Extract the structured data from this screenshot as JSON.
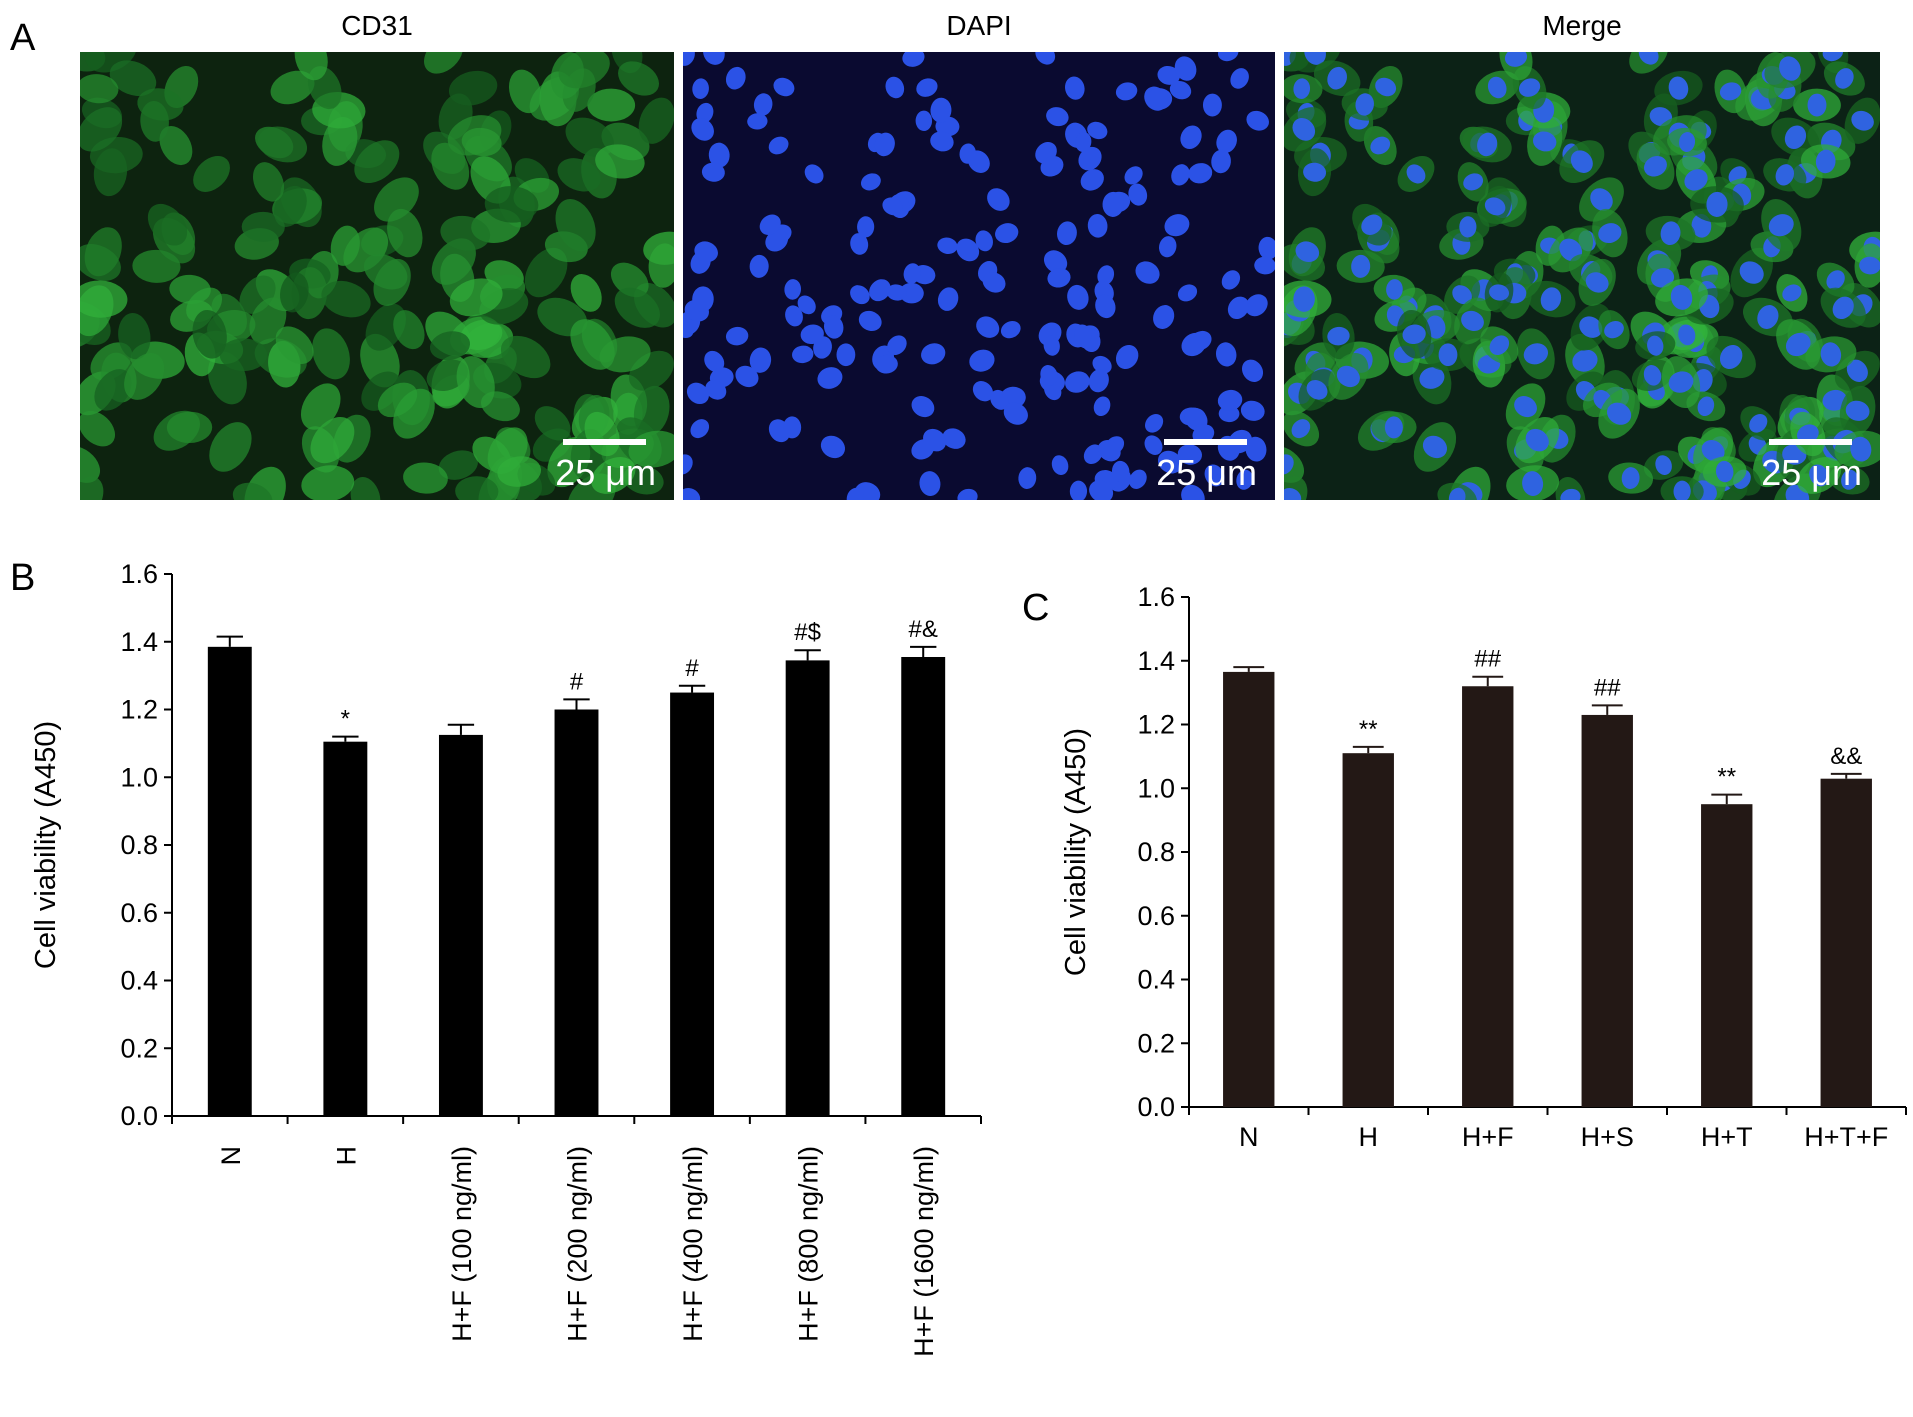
{
  "figure": {
    "panel_labels": [
      "A",
      "B",
      "C"
    ],
    "image_titles": [
      "CD31",
      "DAPI",
      "Merge"
    ],
    "scale_bars": [
      "25 μm",
      "25 μm",
      "25 μm"
    ]
  },
  "chart_data": [
    {
      "type": "bar",
      "y_label": "Cell viability (A450)",
      "color": "#000000",
      "categories": [
        "N",
        "H",
        "H+F (100 ng/ml)",
        "H+F (200 ng/ml)",
        "H+F (400 ng/ml)",
        "H+F (800 ng/ml)",
        "H+F (1600 ng/ml)"
      ],
      "values": [
        1.385,
        1.105,
        1.125,
        1.2,
        1.25,
        1.345,
        1.355
      ],
      "errors": [
        0.03,
        0.015,
        0.03,
        0.03,
        0.02,
        0.03,
        0.03
      ],
      "annotations": [
        null,
        "*",
        null,
        "#",
        "#",
        "#$",
        "#&"
      ],
      "ylim": [
        0,
        1.6
      ],
      "yticks": [
        {
          "value": 0,
          "label": "0.0"
        },
        0.2,
        0.4,
        0.6,
        0.8,
        {
          "value": 1,
          "label": "1.0"
        },
        1.2,
        1.4,
        1.6
      ],
      "category_label_rotation": -90
    },
    {
      "type": "bar",
      "y_label": "Cell viability (A450)",
      "color": "#231815",
      "categories": [
        "N",
        "H",
        "H+F",
        "H+S",
        "H+T",
        "H+T+F"
      ],
      "values": [
        1.365,
        1.11,
        1.32,
        1.23,
        0.95,
        1.03
      ],
      "errors": [
        0.015,
        0.02,
        0.03,
        0.03,
        0.03,
        0.015
      ],
      "annotations": [
        null,
        "**",
        "##",
        "##",
        "**",
        "&&"
      ],
      "ylim": [
        0,
        1.6
      ],
      "yticks": [
        {
          "value": 0,
          "label": "0.0"
        },
        0.2,
        0.4,
        0.6,
        0.8,
        {
          "value": 1,
          "label": "1.0"
        },
        1.2,
        1.4,
        1.6
      ],
      "category_label_rotation": 0
    }
  ]
}
